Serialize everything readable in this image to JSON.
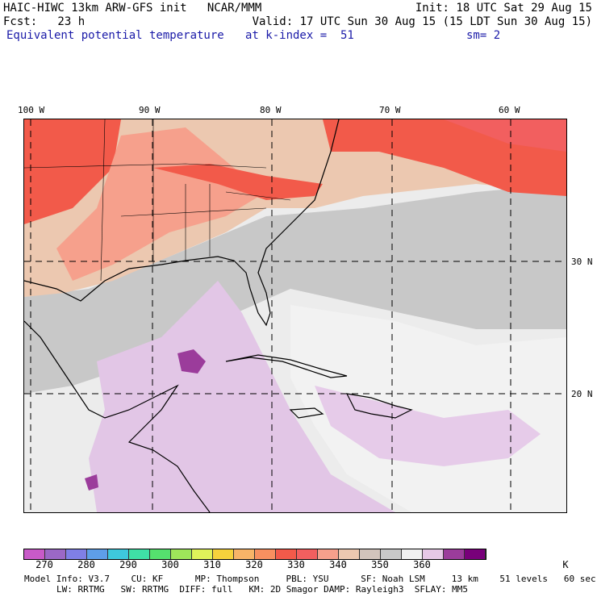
{
  "header": {
    "line1_left": "HAIC-HIWC 13km ARW-GFS init   NCAR/MMM",
    "line1_right": "Init: 18 UTC Sat 29 Aug 15",
    "line2_left": "Fcst:   23 h",
    "line2_right": "Valid: 17 UTC Sun 30 Aug 15 (15 LDT Sun 30 Aug 15)",
    "line3_left": "Equivalent potential temperature",
    "line3_mid": "at k-index =  51",
    "line3_right": "sm= 2"
  },
  "map": {
    "lon_labels": [
      "100 W",
      "90 W",
      "80 W",
      "70 W",
      "60 W"
    ],
    "lat_labels": [
      "30 N",
      "20 N"
    ]
  },
  "colorbar": {
    "colors": [
      "#c85ac8",
      "#9b68c6",
      "#7f7fe6",
      "#5e9ee8",
      "#3ec8dc",
      "#3fe0a6",
      "#55e06e",
      "#9ee65a",
      "#e0f25a",
      "#f6d23c",
      "#f8b468",
      "#f89060",
      "#f25a4a",
      "#f25f5f",
      "#f6a08c",
      "#ecc8b0",
      "#d2c4bc",
      "#c8c8c8",
      "#f0f0f0",
      "#e6c8e6",
      "#9b3c9b",
      "#78007a"
    ],
    "labels": [
      "270",
      "280",
      "290",
      "300",
      "310",
      "320",
      "330",
      "340",
      "350",
      "360"
    ],
    "unit": "K"
  },
  "footer": {
    "line1": "Model Info: V3.7    CU: KF      MP: Thompson     PBL: YSU      SF: Noah LSM     13 km    51 levels   60 sec",
    "line2": "LW: RRTMG   SW: RRTMG  DIFF: full   KM: 2D Smagor DAMP: Rayleigh3  SFLAY: MM5"
  }
}
